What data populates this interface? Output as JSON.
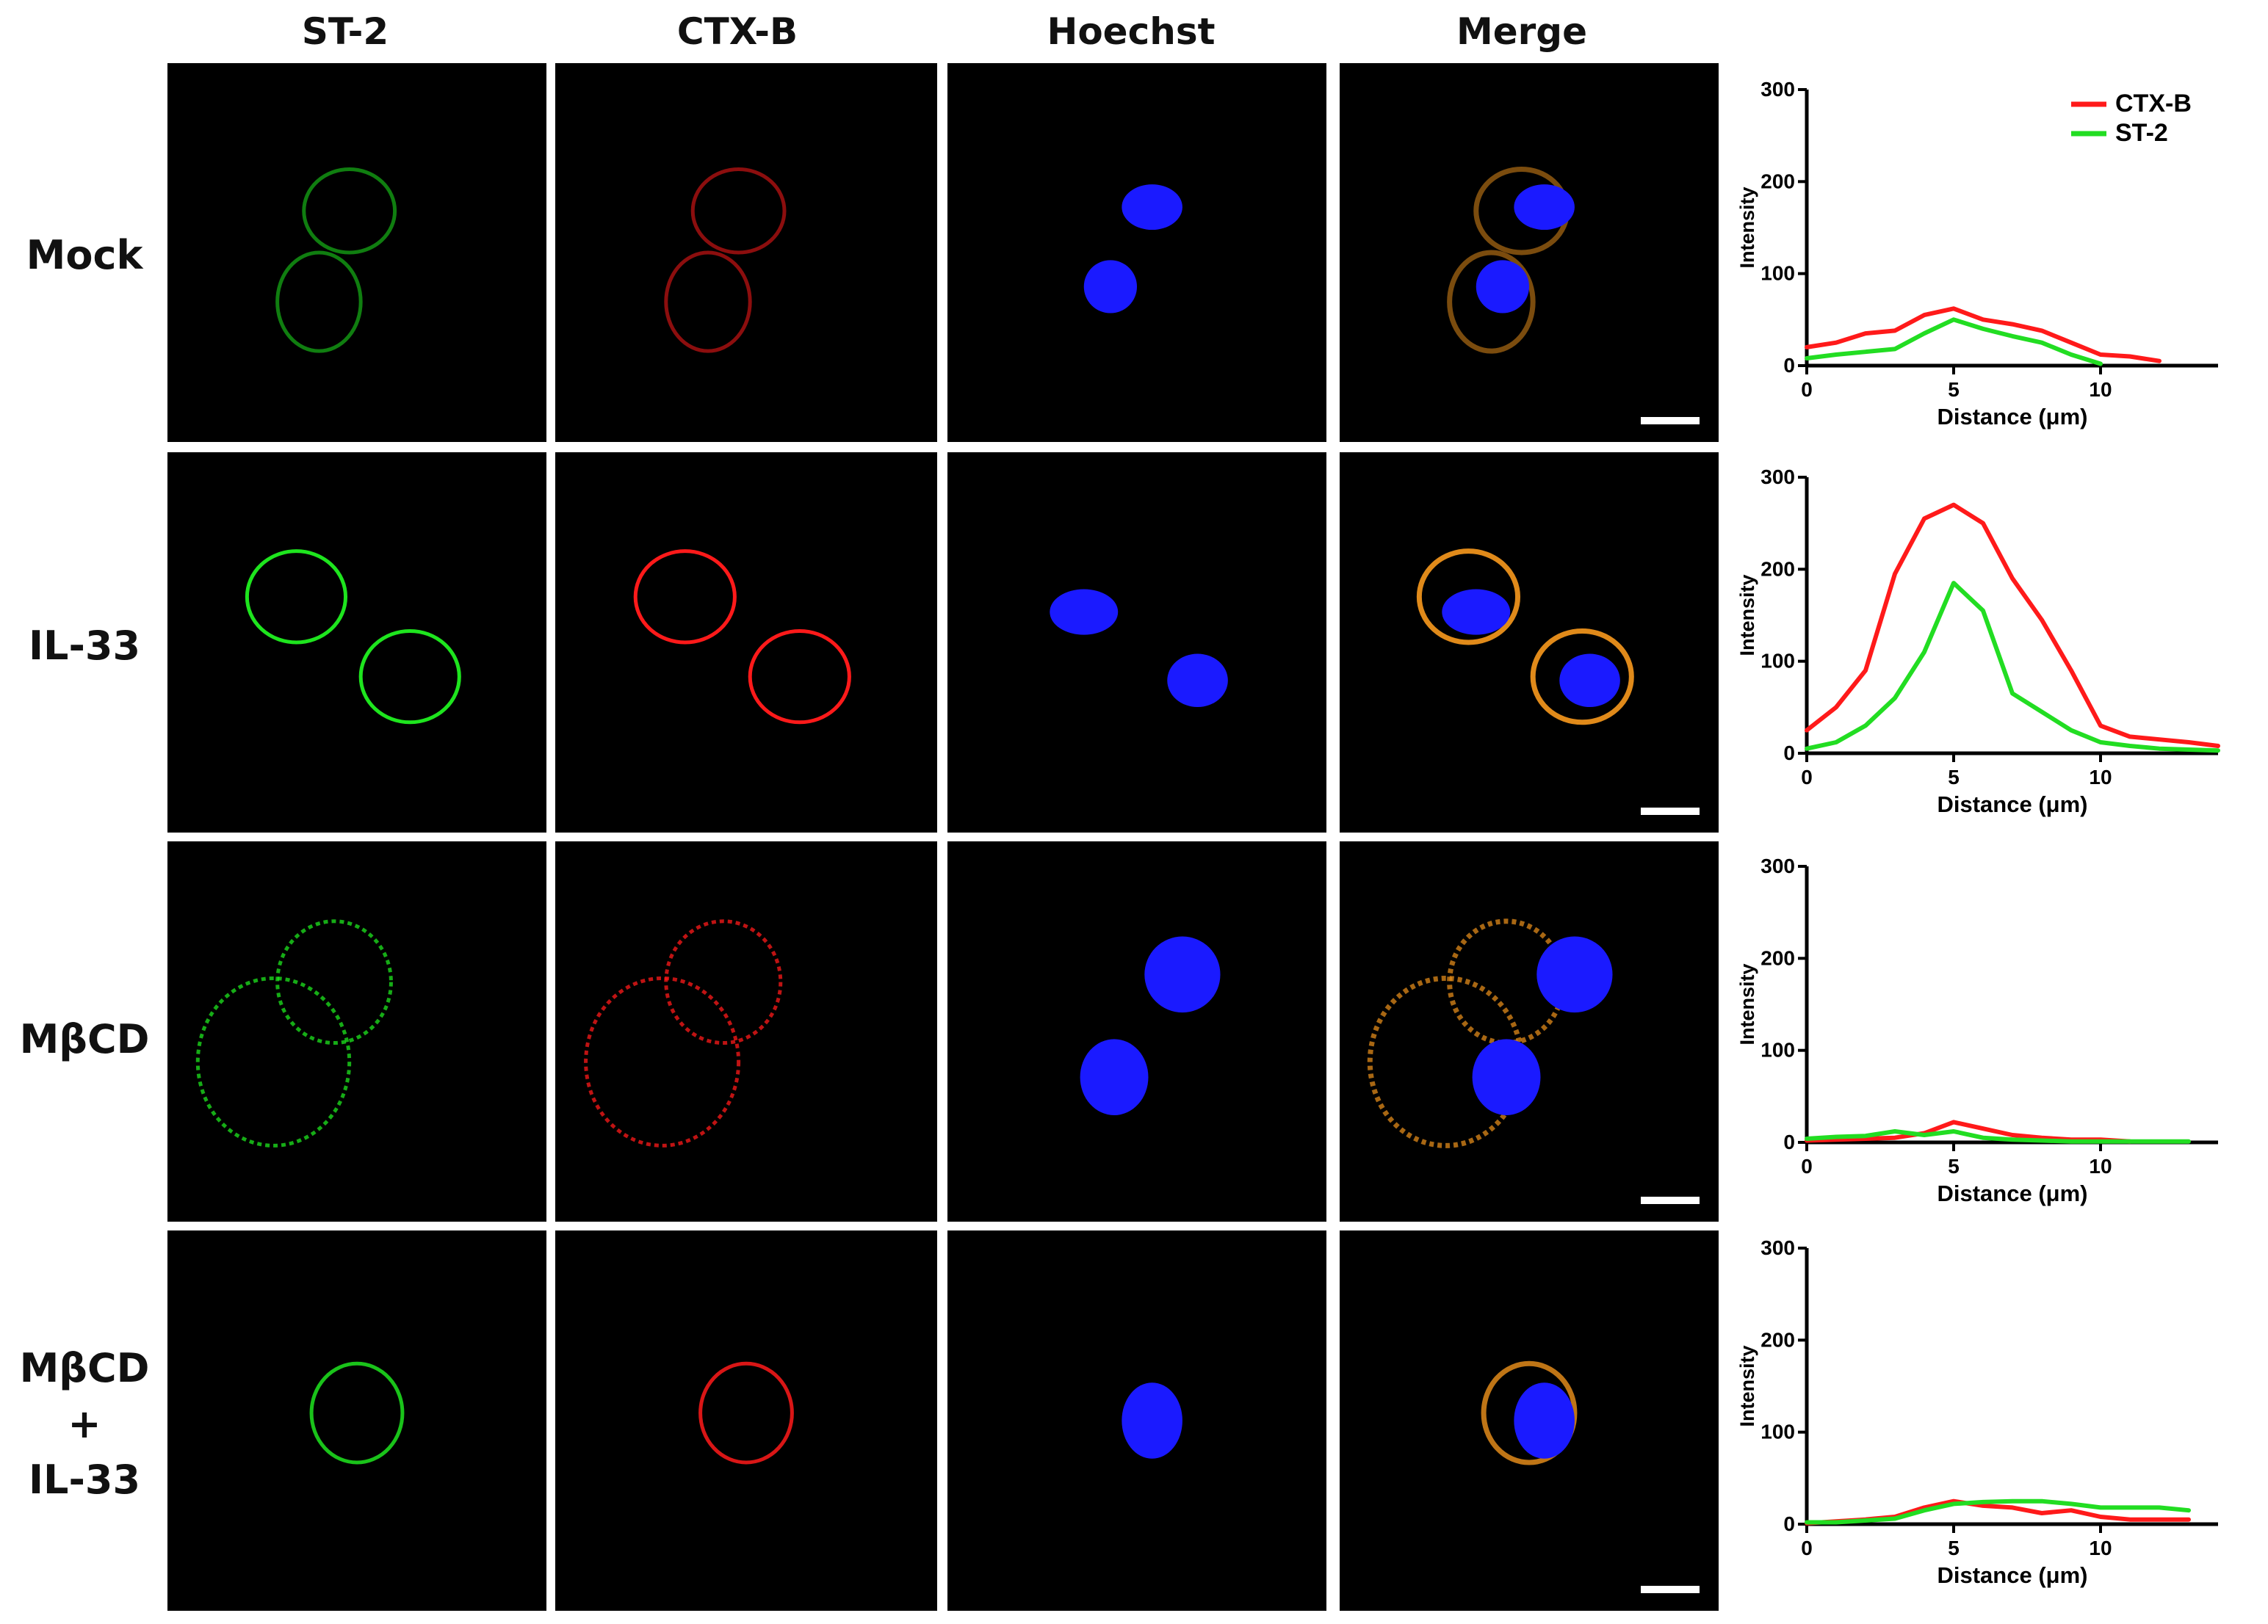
{
  "column_headers": [
    "ST-2",
    "CTX-B",
    "Hoechst",
    "Merge"
  ],
  "row_labels": [
    {
      "lines": [
        "Mock"
      ]
    },
    {
      "lines": [
        "IL-33"
      ]
    },
    {
      "lines": [
        "MβCD"
      ]
    },
    {
      "lines": [
        "MβCD",
        "+",
        "IL-33"
      ]
    }
  ],
  "colors": {
    "st2": "#1ee51e",
    "ctxb": "#ff1a1a",
    "hoechst": "#1a1aff",
    "ctxb_line": "#ff1a1a",
    "st2_line": "#22dd22"
  },
  "chart_data": [
    {
      "type": "line",
      "xlabel": "Distance (μm)",
      "ylabel": "Intensity",
      "xlim": [
        0,
        14
      ],
      "ylim": [
        0,
        300
      ],
      "xticks": [
        0,
        5,
        10
      ],
      "yticks": [
        0,
        100,
        200,
        300
      ],
      "legend": "top-right",
      "series": [
        {
          "name": "CTX-B",
          "color": "#ff1a1a",
          "x": [
            0,
            1,
            2,
            3,
            4,
            5,
            6,
            7,
            8,
            9,
            10,
            11,
            12
          ],
          "y": [
            20,
            25,
            35,
            38,
            55,
            62,
            50,
            45,
            38,
            25,
            12,
            10,
            5
          ]
        },
        {
          "name": "ST-2",
          "color": "#22dd22",
          "x": [
            0,
            1,
            2,
            3,
            4,
            5,
            6,
            7,
            8,
            9,
            10
          ],
          "y": [
            8,
            12,
            15,
            18,
            35,
            50,
            40,
            32,
            25,
            12,
            2
          ]
        }
      ]
    },
    {
      "type": "line",
      "xlabel": "Distance (μm)",
      "ylabel": "Intensity",
      "xlim": [
        0,
        14
      ],
      "ylim": [
        0,
        300
      ],
      "xticks": [
        0,
        5,
        10
      ],
      "yticks": [
        0,
        100,
        200,
        300
      ],
      "series": [
        {
          "color": "#ff1a1a",
          "x": [
            0,
            1,
            2,
            3,
            4,
            5,
            6,
            7,
            8,
            9,
            10,
            11,
            12,
            13,
            14
          ],
          "y": [
            25,
            50,
            90,
            195,
            255,
            270,
            250,
            190,
            145,
            90,
            30,
            18,
            15,
            12,
            8
          ]
        },
        {
          "color": "#22dd22",
          "x": [
            0,
            1,
            2,
            3,
            4,
            5,
            6,
            7,
            8,
            9,
            10,
            11,
            12,
            13,
            14
          ],
          "y": [
            5,
            12,
            30,
            60,
            110,
            185,
            155,
            65,
            45,
            25,
            12,
            8,
            5,
            4,
            3
          ]
        }
      ]
    },
    {
      "type": "line",
      "xlabel": "Distance (μm)",
      "ylabel": "Intensity",
      "xlim": [
        0,
        14
      ],
      "ylim": [
        0,
        300
      ],
      "xticks": [
        0,
        5,
        10
      ],
      "yticks": [
        0,
        100,
        200,
        300
      ],
      "series": [
        {
          "color": "#ff1a1a",
          "x": [
            0,
            1,
            2,
            3,
            4,
            5,
            6,
            7,
            8,
            9,
            10,
            11
          ],
          "y": [
            2,
            3,
            4,
            5,
            10,
            22,
            15,
            8,
            5,
            3,
            3,
            1
          ]
        },
        {
          "color": "#22dd22",
          "x": [
            0,
            1,
            2,
            3,
            4,
            5,
            6,
            7,
            8,
            9,
            10,
            11,
            12,
            13
          ],
          "y": [
            4,
            6,
            7,
            12,
            8,
            12,
            5,
            3,
            2,
            1,
            1,
            1,
            1,
            1
          ]
        }
      ]
    },
    {
      "type": "line",
      "xlabel": "Distance (μm)",
      "ylabel": "Intensity",
      "xlim": [
        0,
        14
      ],
      "ylim": [
        0,
        300
      ],
      "xticks": [
        0,
        5,
        10
      ],
      "yticks": [
        0,
        100,
        200,
        300
      ],
      "series": [
        {
          "color": "#ff1a1a",
          "x": [
            0,
            1,
            2,
            3,
            4,
            5,
            6,
            7,
            8,
            9,
            10,
            11,
            12,
            13
          ],
          "y": [
            1,
            3,
            5,
            8,
            18,
            25,
            20,
            18,
            12,
            15,
            8,
            5,
            5,
            5
          ]
        },
        {
          "color": "#22dd22",
          "x": [
            0,
            1,
            2,
            3,
            4,
            5,
            6,
            7,
            8,
            9,
            10,
            11,
            12,
            13
          ],
          "y": [
            2,
            2,
            4,
            6,
            15,
            22,
            24,
            25,
            25,
            22,
            18,
            18,
            18,
            15
          ]
        }
      ]
    }
  ]
}
